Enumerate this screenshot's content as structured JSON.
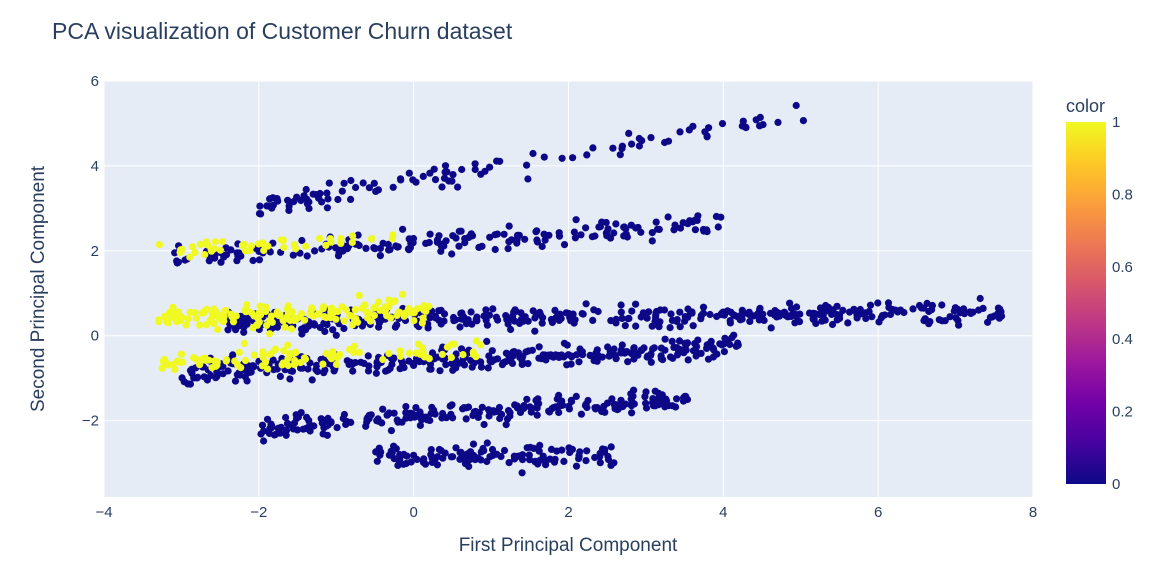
{
  "chart_data": {
    "type": "scatter",
    "title": "PCA visualization of Customer Churn dataset",
    "xlabel": "First Principal Component",
    "ylabel": "Second Principal Component",
    "xlim": [
      -4,
      8
    ],
    "ylim": [
      -3.8,
      6
    ],
    "x_ticks": [
      "−4",
      "−2",
      "0",
      "2",
      "4",
      "6",
      "8"
    ],
    "y_ticks": [
      "−2",
      "0",
      "2",
      "4",
      "6"
    ],
    "grid": true,
    "colorbar": {
      "title": "color",
      "range": [
        0,
        1
      ],
      "ticks": [
        "0",
        "0.2",
        "0.4",
        "0.6",
        "0.8",
        "1"
      ],
      "colorscale": [
        "#0d0887",
        "#46039f",
        "#7201a8",
        "#9c179e",
        "#bd3786",
        "#d8576b",
        "#ed7953",
        "#fb9f3a",
        "#fdca26",
        "#f0f921"
      ]
    },
    "colors": {
      "class_0": "#0d0887",
      "class_1": "#f0f921",
      "plot_bg": "#e5ecf6",
      "grid": "#ffffff"
    },
    "clusters": [
      {
        "class": 0,
        "band": "A",
        "x_range": [
          -2.0,
          5.2
        ],
        "y_start": 3.0,
        "y_end": 5.2,
        "n": 110
      },
      {
        "class": 0,
        "band": "B",
        "x_range": [
          -3.1,
          4.0
        ],
        "y_start": 1.8,
        "y_end": 2.6,
        "n": 190
      },
      {
        "class": 0,
        "band": "C",
        "x_range": [
          -2.4,
          7.6
        ],
        "y_start": 0.3,
        "y_end": 0.5,
        "n": 420
      },
      {
        "class": 0,
        "band": "D",
        "x_range": [
          -3.0,
          4.2
        ],
        "y_start": -0.9,
        "y_end": -0.3,
        "n": 330
      },
      {
        "class": 0,
        "band": "E",
        "x_range": [
          -2.0,
          3.6
        ],
        "y_start": -2.2,
        "y_end": -1.5,
        "n": 230
      },
      {
        "class": 0,
        "band": "F",
        "x_range": [
          -0.5,
          2.6
        ],
        "y_start": -2.8,
        "y_end": -2.9,
        "n": 120
      },
      {
        "class": 1,
        "band": "A",
        "x_range": [
          -3.3,
          -0.2
        ],
        "y_start": 1.9,
        "y_end": 2.3,
        "n": 45
      },
      {
        "class": 1,
        "band": "B",
        "x_range": [
          -3.3,
          0.2
        ],
        "y_start": 0.35,
        "y_end": 0.55,
        "n": 170
      },
      {
        "class": 1,
        "band": "C",
        "x_range": [
          -3.3,
          0.9
        ],
        "y_start": -0.7,
        "y_end": -0.35,
        "n": 95
      }
    ]
  }
}
